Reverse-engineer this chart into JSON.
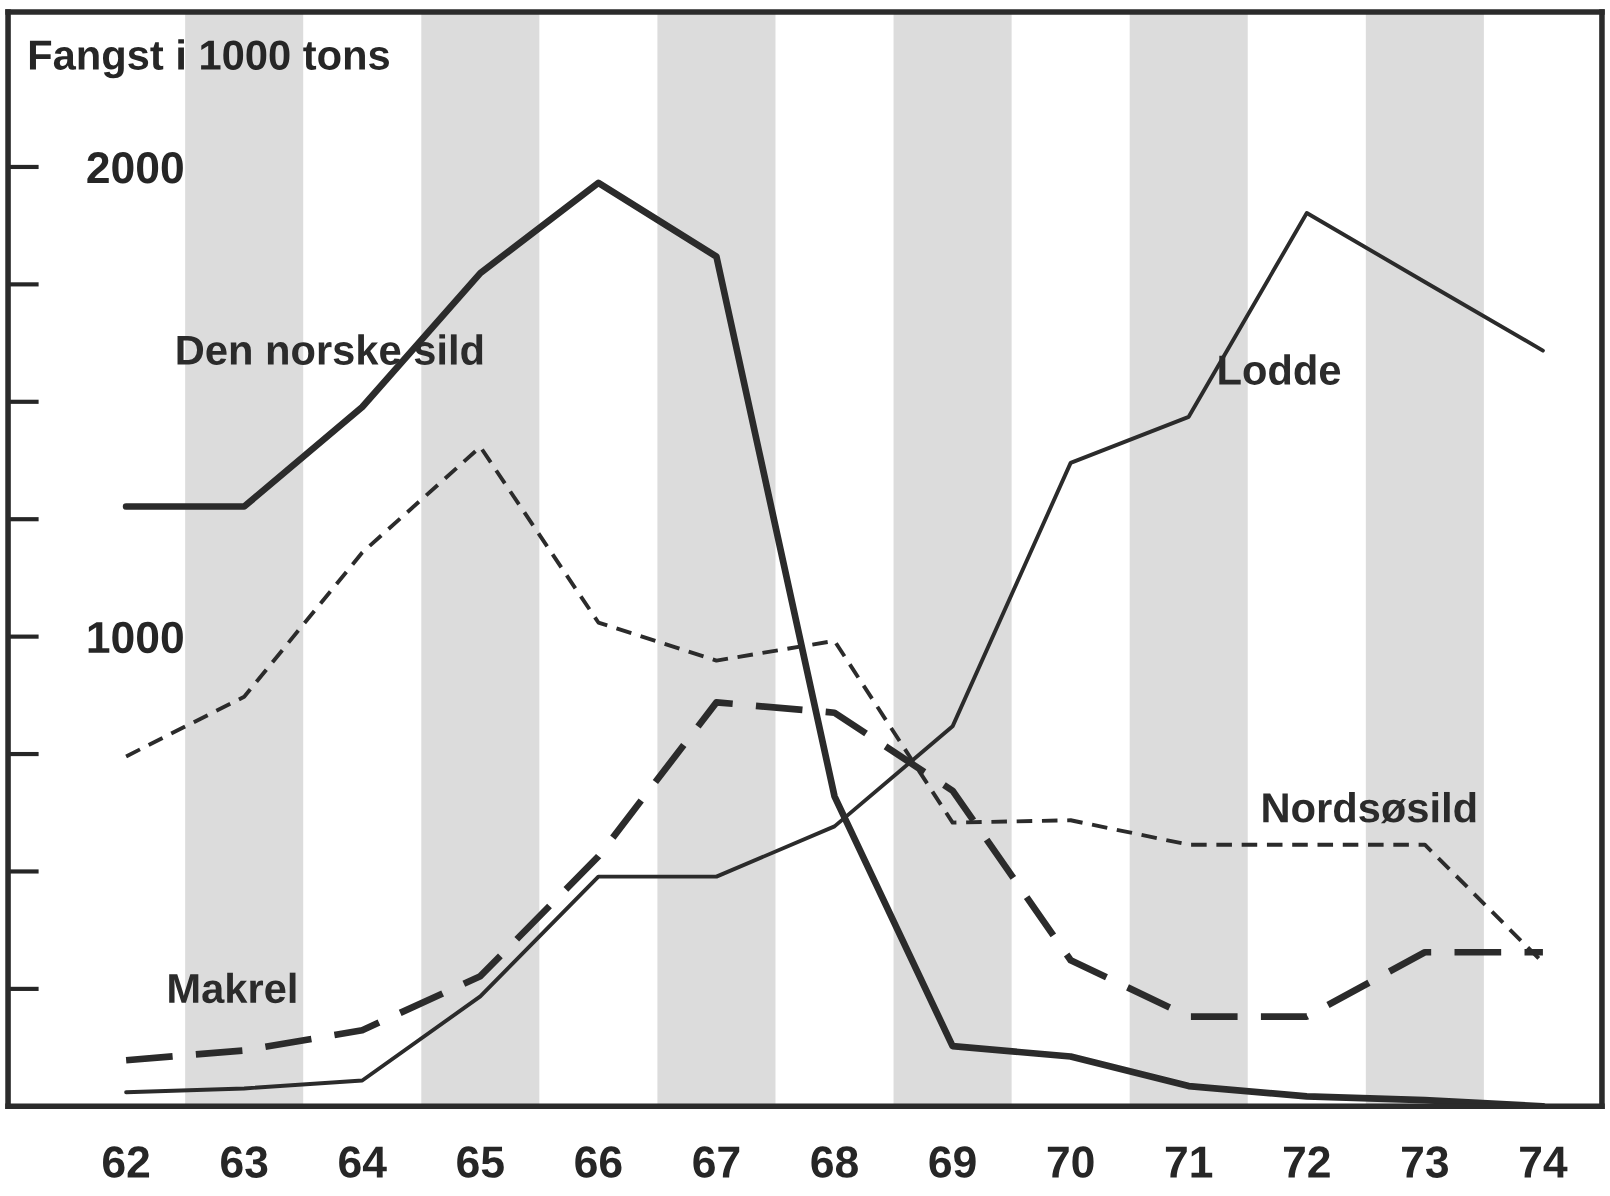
{
  "chart_data": {
    "type": "line",
    "ylabel": "Fangst i 1000 tons",
    "x": [
      62,
      63,
      64,
      65,
      66,
      67,
      68,
      69,
      70,
      71,
      72,
      73,
      74
    ],
    "series": [
      {
        "name": "Den norske sild",
        "color": "#2b2b2b",
        "line_style": "solid",
        "values": [
          1277,
          1277,
          1489,
          1774,
          1966,
          1809,
          660,
          128,
          106,
          43,
          21,
          13,
          0
        ]
      },
      {
        "name": "Lodde",
        "color": "#2b2b2b",
        "line_style": "solid",
        "values": [
          30,
          38,
          55,
          234,
          489,
          489,
          596,
          809,
          1370,
          1468,
          1902,
          1755,
          1609
        ]
      },
      {
        "name": "Nordsøsild",
        "color": "#2b2b2b",
        "line_style": "dashed",
        "values": [
          745,
          872,
          1179,
          1404,
          1030,
          949,
          991,
          604,
          609,
          557,
          557,
          557,
          306
        ]
      },
      {
        "name": "Makrel",
        "color": "#2b2b2b",
        "line_style": "dashed",
        "values": [
          98,
          119,
          162,
          277,
          532,
          860,
          838,
          672,
          311,
          191,
          191,
          328,
          328
        ]
      }
    ],
    "xlim": [
      61,
      74.5
    ],
    "ylim": [
      0,
      2330
    ],
    "xticks": [
      62,
      63,
      64,
      65,
      66,
      67,
      68,
      69,
      70,
      71,
      72,
      73,
      74
    ],
    "yticks": [
      {
        "value": 0,
        "label": null
      },
      {
        "value": 250,
        "label": null
      },
      {
        "value": 500,
        "label": null
      },
      {
        "value": 750,
        "label": null
      },
      1000,
      {
        "value": 1250,
        "label": null
      },
      {
        "value": 1500,
        "label": null
      },
      {
        "value": 1750,
        "label": null
      },
      2000
    ],
    "bands": [
      {
        "axis": "x",
        "from": 62.5,
        "to": 63.5,
        "color": "#dcdcdc"
      },
      {
        "axis": "x",
        "from": 64.5,
        "to": 65.5,
        "color": "#dcdcdc"
      },
      {
        "axis": "x",
        "from": 66.5,
        "to": 67.5,
        "color": "#dcdcdc"
      },
      {
        "axis": "x",
        "from": 68.5,
        "to": 69.5,
        "color": "#dcdcdc"
      },
      {
        "axis": "x",
        "from": 70.5,
        "to": 71.5,
        "color": "#dcdcdc"
      },
      {
        "axis": "x",
        "from": 72.5,
        "to": 73.5,
        "color": "#dcdcdc"
      }
    ],
    "grid": false,
    "legend": false
  }
}
